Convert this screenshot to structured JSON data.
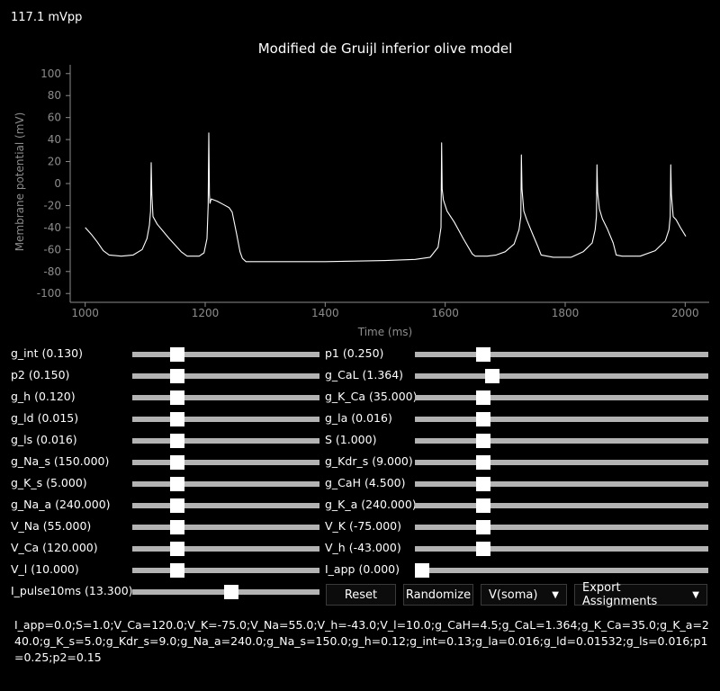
{
  "header": {
    "amplitude": "117.1 mVpp"
  },
  "chart_data": {
    "type": "line",
    "title": "Modified de Gruijl inferior olive model",
    "xlabel": "Time (ms)",
    "ylabel": "Membrane potential (mV)",
    "xlim": [
      975,
      2040
    ],
    "ylim": [
      -108,
      108
    ],
    "xticks": [
      1000,
      1200,
      1400,
      1600,
      1800,
      2000
    ],
    "yticks": [
      100,
      80,
      60,
      40,
      20,
      0,
      -20,
      -40,
      -60,
      -80,
      -100
    ],
    "grid": false,
    "series": [
      {
        "color": "#ffffff",
        "points": [
          [
            1000,
            -40
          ],
          [
            1010,
            -46
          ],
          [
            1020,
            -53
          ],
          [
            1030,
            -61
          ],
          [
            1040,
            -65
          ],
          [
            1060,
            -66
          ],
          [
            1080,
            -65
          ],
          [
            1095,
            -60
          ],
          [
            1103,
            -50
          ],
          [
            1107,
            -38
          ],
          [
            1109,
            -25
          ],
          [
            1110,
            19
          ],
          [
            1111,
            -10
          ],
          [
            1113,
            -30
          ],
          [
            1120,
            -37
          ],
          [
            1140,
            -50
          ],
          [
            1160,
            -62
          ],
          [
            1170,
            -66
          ],
          [
            1190,
            -66
          ],
          [
            1198,
            -63
          ],
          [
            1203,
            -50
          ],
          [
            1205,
            -20
          ],
          [
            1206,
            46
          ],
          [
            1207,
            -10
          ],
          [
            1208,
            -18
          ],
          [
            1210,
            -14
          ],
          [
            1220,
            -16
          ],
          [
            1230,
            -19
          ],
          [
            1240,
            -22
          ],
          [
            1245,
            -26
          ],
          [
            1252,
            -45
          ],
          [
            1258,
            -62
          ],
          [
            1262,
            -68
          ],
          [
            1268,
            -71
          ],
          [
            1300,
            -71
          ],
          [
            1400,
            -71
          ],
          [
            1500,
            -70
          ],
          [
            1550,
            -69
          ],
          [
            1575,
            -67
          ],
          [
            1588,
            -58
          ],
          [
            1593,
            -40
          ],
          [
            1594,
            37
          ],
          [
            1595,
            -5
          ],
          [
            1597,
            -15
          ],
          [
            1603,
            -25
          ],
          [
            1615,
            -35
          ],
          [
            1630,
            -50
          ],
          [
            1645,
            -64
          ],
          [
            1650,
            -66
          ],
          [
            1670,
            -66
          ],
          [
            1685,
            -65
          ],
          [
            1700,
            -62
          ],
          [
            1715,
            -55
          ],
          [
            1723,
            -42
          ],
          [
            1726,
            -30
          ],
          [
            1727,
            26
          ],
          [
            1728,
            -5
          ],
          [
            1731,
            -25
          ],
          [
            1736,
            -33
          ],
          [
            1745,
            -45
          ],
          [
            1755,
            -58
          ],
          [
            1760,
            -65
          ],
          [
            1780,
            -67
          ],
          [
            1810,
            -67
          ],
          [
            1830,
            -62
          ],
          [
            1845,
            -54
          ],
          [
            1850,
            -42
          ],
          [
            1852,
            -30
          ],
          [
            1853,
            17
          ],
          [
            1854,
            -8
          ],
          [
            1857,
            -23
          ],
          [
            1862,
            -32
          ],
          [
            1870,
            -41
          ],
          [
            1880,
            -54
          ],
          [
            1885,
            -65
          ],
          [
            1895,
            -66
          ],
          [
            1925,
            -66
          ],
          [
            1950,
            -61
          ],
          [
            1967,
            -52
          ],
          [
            1973,
            -42
          ],
          [
            1975,
            -30
          ],
          [
            1976,
            17
          ],
          [
            1977,
            -10
          ],
          [
            1980,
            -30
          ],
          [
            1985,
            -33
          ],
          [
            1992,
            -40
          ],
          [
            2001,
            -48
          ]
        ]
      }
    ]
  },
  "sliders": [
    {
      "label": "g_int (0.130)",
      "value": 0.22
    },
    {
      "label": "p1 (0.250)",
      "value": 0.22
    },
    {
      "label": "p2 (0.150)",
      "value": 0.22
    },
    {
      "label": "g_CaL (1.364)",
      "value": 0.25
    },
    {
      "label": "g_h (0.120)",
      "value": 0.22
    },
    {
      "label": "g_K_Ca (35.000)",
      "value": 0.22
    },
    {
      "label": "g_ld (0.015)",
      "value": 0.22
    },
    {
      "label": "g_la (0.016)",
      "value": 0.22
    },
    {
      "label": "g_ls (0.016)",
      "value": 0.22
    },
    {
      "label": "S (1.000)",
      "value": 0.22
    },
    {
      "label": "g_Na_s (150.000)",
      "value": 0.22
    },
    {
      "label": "g_Kdr_s (9.000)",
      "value": 0.22
    },
    {
      "label": "g_K_s (5.000)",
      "value": 0.22
    },
    {
      "label": "g_CaH (4.500)",
      "value": 0.22
    },
    {
      "label": "g_Na_a (240.000)",
      "value": 0.22
    },
    {
      "label": "g_K_a (240.000)",
      "value": 0.22
    },
    {
      "label": "V_Na (55.000)",
      "value": 0.22
    },
    {
      "label": "V_K (-75.000)",
      "value": 0.22
    },
    {
      "label": "V_Ca (120.000)",
      "value": 0.22
    },
    {
      "label": "V_h (-43.000)",
      "value": 0.22
    },
    {
      "label": "V_l (10.000)",
      "value": 0.22
    },
    {
      "label": "I_app (0.000)",
      "value": 0.0
    },
    {
      "label": "I_pulse10ms (13.300)",
      "value": 0.53
    }
  ],
  "controls": {
    "reset_label": "Reset",
    "randomize_label": "Randomize",
    "signal_select": "V(soma)",
    "export_label": "Export Assignments"
  },
  "assignments": "I_app=0.0;S=1.0;V_Ca=120.0;V_K=-75.0;V_Na=55.0;V_h=-43.0;V_l=10.0;g_CaH=4.5;g_CaL=1.364;g_K_Ca=35.0;g_K_a=240.0;g_K_s=5.0;g_Kdr_s=9.0;g_Na_a=240.0;g_Na_s=150.0;g_h=0.12;g_int=0.13;g_la=0.016;g_ld=0.01532;g_ls=0.016;p1=0.25;p2=0.15"
}
